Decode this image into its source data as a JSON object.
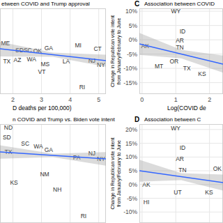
{
  "chart_data": [
    {
      "type": "scatter",
      "title": "etween COVID and Trump approval",
      "x_label": "D deaths per 100,000)",
      "xlim": [
        1.55,
        5.25
      ],
      "ylim": [
        0,
        100
      ],
      "xticks": [
        2,
        3,
        4,
        5
      ],
      "grid": true,
      "tick_labels": "x",
      "series": [
        {
          "type": "scatter",
          "marker": "text",
          "color": "#333333",
          "labels": [
            "ME",
            "SD",
            "SC",
            "OK",
            "GA",
            "MI",
            "CT",
            "TX",
            "AZ",
            "WA",
            "MS",
            "VT",
            "LA",
            "NJ",
            "NY",
            "RI"
          ],
          "x": [
            1.74,
            2.23,
            2.52,
            2.86,
            3.25,
            4.28,
            4.96,
            1.79,
            2.16,
            2.65,
            3.13,
            3.01,
            3.86,
            4.76,
            5.08,
            4.42
          ],
          "values": [
            59.3,
            51.2,
            51.2,
            50.4,
            53.7,
            56.9,
            52.8,
            38.2,
            39.8,
            40.7,
            35,
            26,
            38.2,
            39,
            34.1,
            8.1
          ]
        },
        {
          "type": "line",
          "color": "#3366ff",
          "x": [
            1.55,
            3.4,
            5.25
          ],
          "values": [
            52.8,
            45.9,
            39
          ],
          "ci_lower": [
            44,
            43.5,
            32
          ],
          "ci_upper": [
            61,
            48.3,
            46
          ]
        }
      ]
    },
    {
      "type": "scatter",
      "title": "n COVID and Trump vs. Biden vote intent",
      "xlim": [
        1.55,
        5.25
      ],
      "ylim": [
        0,
        100
      ],
      "xticks": [
        2,
        3,
        4,
        5
      ],
      "grid": true,
      "tick_labels": false,
      "series": [
        {
          "type": "scatter",
          "marker": "text",
          "color": "#333333",
          "labels": [
            "ND",
            "SD",
            "SC",
            "TX",
            "WA",
            "GA",
            "PA",
            "NJ",
            "NY",
            "NM",
            "KS",
            "NH",
            "RI"
          ],
          "x": [
            1.84,
            1.79,
            2.43,
            1.84,
            2.89,
            3.25,
            4.23,
            4.76,
            5.08,
            3.11,
            2.04,
            3.55,
            4.47
          ],
          "values": [
            96.5,
            86.6,
            80.3,
            71.8,
            77.5,
            73.9,
            66.2,
            70.4,
            64.8,
            49.3,
            40.8,
            33.8,
            7
          ]
        },
        {
          "type": "line",
          "color": "#3366ff",
          "x": [
            1.55,
            3.4,
            5.25
          ],
          "values": [
            71.8,
            68.3,
            64.8
          ],
          "ci_lower": [
            65,
            66.6,
            58
          ],
          "ci_upper": [
            78.6,
            70,
            71.6
          ]
        }
      ]
    },
    {
      "type": "scatter",
      "panel": "C",
      "title": "Association between COVID",
      "x_label": "Log(COVID de",
      "y_label": [
        "Change in Republican vote intent",
        "from January/February to June"
      ],
      "xlim": [
        -0.08,
        2.4
      ],
      "ylim": [
        -19,
        11
      ],
      "xticks": [
        0,
        1,
        2
      ],
      "yticks": [
        {
          "value": 10,
          "label": "10%"
        },
        {
          "value": 5,
          "label": "5%"
        },
        {
          "value": 0,
          "label": "0%"
        },
        {
          "value": -5,
          "label": "-5%"
        },
        {
          "value": -10,
          "label": "-10%"
        },
        {
          "value": -15,
          "label": "-15%"
        }
      ],
      "grid": true,
      "series": [
        {
          "type": "scatter",
          "marker": "text",
          "color": "#333333",
          "labels": [
            "WY",
            "ID",
            "AR",
            "TN",
            "AK",
            "OR",
            "MT",
            "TX",
            "KS"
          ],
          "x": [
            1.0,
            1.2,
            1.12,
            1.12,
            0.09,
            0.95,
            0.5,
            1.33,
            1.78
          ],
          "values": [
            10,
            2.95,
            -0.22,
            -2.66,
            -2.17,
            -7.54,
            -9.24,
            -9.98,
            -11.93
          ]
        },
        {
          "type": "line",
          "color": "#3366ff",
          "x": [
            -0.08,
            1.16,
            2.4
          ],
          "values": [
            -1.44,
            -4.98,
            -8.51
          ],
          "ci_lower": [
            -5.3,
            -6.5,
            -11.5
          ],
          "ci_upper": [
            2.4,
            -3.5,
            -5.5
          ]
        }
      ]
    },
    {
      "type": "scatter",
      "panel": "D",
      "title": "Association between C",
      "y_label": [
        "Change in Republican vote intent",
        "from January/February to June"
      ],
      "xlim": [
        -0.08,
        2.4
      ],
      "ylim": [
        -14,
        22
      ],
      "xticks": [
        0,
        1,
        2
      ],
      "yticks": [
        {
          "value": 20,
          "label": "20%"
        },
        {
          "value": 15,
          "label": "15%"
        },
        {
          "value": 10,
          "label": "10%"
        },
        {
          "value": 5,
          "label": "5%"
        },
        {
          "value": 0,
          "label": "0%"
        },
        {
          "value": -5,
          "label": "-5%"
        },
        {
          "value": -10,
          "label": "-10%"
        }
      ],
      "grid": true,
      "tick_labels": "y",
      "series": [
        {
          "type": "scatter",
          "marker": "text",
          "color": "#333333",
          "labels": [
            "WY",
            "ID",
            "AR",
            "TN",
            "OK",
            "AK",
            "HI",
            "UT",
            "KS"
          ],
          "x": [
            0.995,
            1.2,
            1.12,
            1.2,
            2.23,
            0.127,
            0.127,
            1.057,
            1.987
          ],
          "values": [
            20.5,
            13.4,
            9.3,
            5.3,
            5.8,
            -0.06,
            -6.4,
            -2.85,
            -2.85
          ]
        },
        {
          "type": "line",
          "color": "#3366ff",
          "x": [
            -0.08,
            1.16,
            2.4
          ],
          "values": [
            5.0,
            2.85,
            0.7
          ],
          "ci_lower": [
            1.0,
            1.6,
            -2.2
          ],
          "ci_upper": [
            9.0,
            4.1,
            3.6
          ]
        }
      ]
    }
  ]
}
